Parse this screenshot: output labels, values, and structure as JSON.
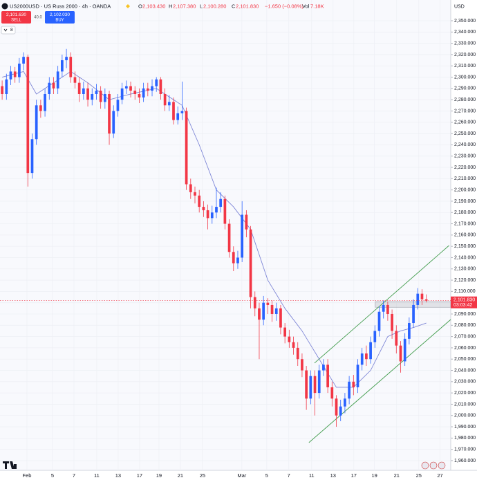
{
  "header": {
    "symbol": "US2000USD · US Russ 2000 · 4h · OANDA",
    "open_label": "O",
    "open": "2,103.430",
    "high_label": "H",
    "high": "2,107.380",
    "low_label": "L",
    "low": "2,100.280",
    "close_label": "C",
    "close": "2,101.830",
    "change": "−1.650 (−0.08%)",
    "volume_label": "Vol",
    "volume": "7.18K"
  },
  "trade": {
    "sell_price": "2,101.630",
    "sell": "SELL",
    "spread": "40.0",
    "buy_price": "2,102.030",
    "buy": "BUY"
  },
  "indicators_count": "8",
  "chart_data": {
    "type": "candlestick",
    "currency": "USD",
    "up_color": "#2962ff",
    "down_color": "#f23645",
    "ma_color": "#7e86d6",
    "channel_color": "#3f9b4a",
    "grid": true,
    "xlim": [
      -0.5,
      104.7
    ],
    "ylim": [
      1951.4,
      2368.4
    ],
    "xticks": [
      {
        "value": 5.79,
        "label": "Feb"
      },
      {
        "value": 11.76,
        "label": "5"
      },
      {
        "value": 16.76,
        "label": "7"
      },
      {
        "value": 22.08,
        "label": "11"
      },
      {
        "value": 27.08,
        "label": "13"
      },
      {
        "value": 32.08,
        "label": "17"
      },
      {
        "value": 36.6,
        "label": "19"
      },
      {
        "value": 41.6,
        "label": "21"
      },
      {
        "value": 46.76,
        "label": "25"
      },
      {
        "value": 55.95,
        "label": "Mar"
      },
      {
        "value": 61.76,
        "label": "5"
      },
      {
        "value": 66.9,
        "label": "7"
      },
      {
        "value": 72.24,
        "label": "11"
      },
      {
        "value": 77.24,
        "label": "13"
      },
      {
        "value": 82.08,
        "label": "17"
      },
      {
        "value": 86.9,
        "label": "19"
      },
      {
        "value": 92.08,
        "label": "21"
      },
      {
        "value": 97.24,
        "label": "25"
      },
      {
        "value": 102.2,
        "label": "27"
      }
    ],
    "yticks": [
      {
        "value": 1960,
        "label": "1,960.000"
      },
      {
        "value": 1970,
        "label": "1,970.000"
      },
      {
        "value": 1980,
        "label": "1,980.000"
      },
      {
        "value": 1990,
        "label": "1,990.000"
      },
      {
        "value": 2000,
        "label": "2,000.000"
      },
      {
        "value": 2010,
        "label": "2,010.000"
      },
      {
        "value": 2020,
        "label": "2,020.000"
      },
      {
        "value": 2030,
        "label": "2,030.000"
      },
      {
        "value": 2040,
        "label": "2,040.000"
      },
      {
        "value": 2050,
        "label": "2,050.000"
      },
      {
        "value": 2060,
        "label": "2,060.000"
      },
      {
        "value": 2070,
        "label": "2,070.000"
      },
      {
        "value": 2080,
        "label": "2,080.000"
      },
      {
        "value": 2090,
        "label": "2,090.000"
      },
      {
        "value": 2100,
        "label": "2,100.000"
      },
      {
        "value": 2110,
        "label": "2,110.000"
      },
      {
        "value": 2120,
        "label": "2,120.000"
      },
      {
        "value": 2130,
        "label": "2,130.000"
      },
      {
        "value": 2140,
        "label": "2,140.000"
      },
      {
        "value": 2150,
        "label": "2,150.000"
      },
      {
        "value": 2160,
        "label": "2,160.000"
      },
      {
        "value": 2170,
        "label": "2,170.000"
      },
      {
        "value": 2180,
        "label": "2,180.000"
      },
      {
        "value": 2190,
        "label": "2,190.000"
      },
      {
        "value": 2200,
        "label": "2,200.000"
      },
      {
        "value": 2210,
        "label": "2,210.000"
      },
      {
        "value": 2220,
        "label": "2,220.000"
      },
      {
        "value": 2230,
        "label": "2,230.000"
      },
      {
        "value": 2240,
        "label": "2,240.000"
      },
      {
        "value": 2250,
        "label": "2,250.000"
      },
      {
        "value": 2260,
        "label": "2,260.000"
      },
      {
        "value": 2270,
        "label": "2,270.000"
      },
      {
        "value": 2280,
        "label": "2,280.000"
      },
      {
        "value": 2290,
        "label": "2,290.000"
      },
      {
        "value": 2300,
        "label": "2,300.000"
      },
      {
        "value": 2310,
        "label": "2,310.000"
      },
      {
        "value": 2320,
        "label": "2,320.000"
      },
      {
        "value": 2330,
        "label": "2,330.000"
      },
      {
        "value": 2340,
        "label": "2,340.000"
      },
      {
        "value": 2350,
        "label": "2,350.000"
      }
    ],
    "candles": [
      [
        2292,
        2297,
        2280,
        2285
      ],
      [
        2285,
        2303,
        2280,
        2298
      ],
      [
        2298,
        2310,
        2293,
        2305
      ],
      [
        2305,
        2309,
        2295,
        2300
      ],
      [
        2300,
        2317,
        2295,
        2312
      ],
      [
        2312,
        2322,
        2306,
        2318
      ],
      [
        2318,
        2320,
        2203,
        2215
      ],
      [
        2215,
        2250,
        2210,
        2245
      ],
      [
        2245,
        2280,
        2240,
        2275
      ],
      [
        2275,
        2280,
        2264,
        2270
      ],
      [
        2270,
        2290,
        2265,
        2285
      ],
      [
        2285,
        2300,
        2280,
        2295
      ],
      [
        2295,
        2300,
        2285,
        2290
      ],
      [
        2290,
        2310,
        2285,
        2305
      ],
      [
        2305,
        2320,
        2300,
        2315
      ],
      [
        2315,
        2325,
        2308,
        2318
      ],
      [
        2318,
        2322,
        2295,
        2300
      ],
      [
        2300,
        2305,
        2290,
        2295
      ],
      [
        2295,
        2300,
        2278,
        2285
      ],
      [
        2285,
        2296,
        2280,
        2290
      ],
      [
        2290,
        2295,
        2274,
        2280
      ],
      [
        2280,
        2290,
        2275,
        2285
      ],
      [
        2285,
        2294,
        2280,
        2288
      ],
      [
        2288,
        2292,
        2272,
        2278
      ],
      [
        2278,
        2290,
        2272,
        2285
      ],
      [
        2285,
        2288,
        2240,
        2250
      ],
      [
        2250,
        2275,
        2246,
        2270
      ],
      [
        2270,
        2285,
        2265,
        2280
      ],
      [
        2280,
        2295,
        2276,
        2290
      ],
      [
        2290,
        2297,
        2285,
        2292
      ],
      [
        2292,
        2296,
        2282,
        2288
      ],
      [
        2288,
        2292,
        2280,
        2285
      ],
      [
        2285,
        2290,
        2277,
        2282
      ],
      [
        2282,
        2295,
        2278,
        2290
      ],
      [
        2290,
        2295,
        2283,
        2288
      ],
      [
        2288,
        2298,
        2283,
        2292
      ],
      [
        2292,
        2300,
        2287,
        2298
      ],
      [
        2298,
        2300,
        2280,
        2285
      ],
      [
        2285,
        2290,
        2270,
        2275
      ],
      [
        2275,
        2284,
        2270,
        2278
      ],
      [
        2278,
        2282,
        2258,
        2262
      ],
      [
        2262,
        2274,
        2258,
        2268
      ],
      [
        2268,
        2296,
        2262,
        2270
      ],
      [
        2270,
        2273,
        2200,
        2205
      ],
      [
        2205,
        2210,
        2192,
        2198
      ],
      [
        2198,
        2203,
        2188,
        2195
      ],
      [
        2195,
        2200,
        2180,
        2185
      ],
      [
        2185,
        2190,
        2176,
        2182
      ],
      [
        2182,
        2187,
        2165,
        2175
      ],
      [
        2175,
        2186,
        2170,
        2180
      ],
      [
        2180,
        2202,
        2175,
        2185
      ],
      [
        2185,
        2198,
        2180,
        2192
      ],
      [
        2192,
        2195,
        2165,
        2170
      ],
      [
        2170,
        2174,
        2140,
        2145
      ],
      [
        2145,
        2150,
        2128,
        2135
      ],
      [
        2135,
        2146,
        2130,
        2140
      ],
      [
        2140,
        2190,
        2136,
        2178
      ],
      [
        2178,
        2182,
        2158,
        2165
      ],
      [
        2165,
        2168,
        2095,
        2105
      ],
      [
        2105,
        2110,
        2088,
        2095
      ],
      [
        2095,
        2100,
        2050,
        2085
      ],
      [
        2085,
        2106,
        2080,
        2100
      ],
      [
        2100,
        2104,
        2090,
        2098
      ],
      [
        2098,
        2102,
        2083,
        2090
      ],
      [
        2090,
        2100,
        2084,
        2095
      ],
      [
        2095,
        2098,
        2072,
        2078
      ],
      [
        2078,
        2082,
        2064,
        2070
      ],
      [
        2070,
        2076,
        2060,
        2065
      ],
      [
        2065,
        2070,
        2054,
        2060
      ],
      [
        2060,
        2065,
        2044,
        2050
      ],
      [
        2050,
        2055,
        2034,
        2040
      ],
      [
        2040,
        2044,
        2005,
        2015
      ],
      [
        2015,
        2040,
        2010,
        2035
      ],
      [
        2035,
        2040,
        2000,
        2020
      ],
      [
        2020,
        2045,
        2015,
        2040
      ],
      [
        2040,
        2050,
        2035,
        2045
      ],
      [
        2045,
        2050,
        2020,
        2025
      ],
      [
        2025,
        2030,
        2008,
        2015
      ],
      [
        2015,
        2018,
        1990,
        2000
      ],
      [
        2000,
        2014,
        1995,
        2008
      ],
      [
        2008,
        2020,
        2002,
        2015
      ],
      [
        2015,
        2035,
        2010,
        2030
      ],
      [
        2030,
        2036,
        2018,
        2025
      ],
      [
        2025,
        2050,
        2020,
        2045
      ],
      [
        2045,
        2060,
        2040,
        2055
      ],
      [
        2055,
        2062,
        2044,
        2050
      ],
      [
        2050,
        2070,
        2046,
        2065
      ],
      [
        2065,
        2080,
        2060,
        2075
      ],
      [
        2075,
        2097,
        2070,
        2092
      ],
      [
        2092,
        2102,
        2086,
        2098
      ],
      [
        2098,
        2101,
        2084,
        2090
      ],
      [
        2090,
        2094,
        2068,
        2075
      ],
      [
        2075,
        2080,
        2055,
        2062
      ],
      [
        2062,
        2066,
        2038,
        2048
      ],
      [
        2048,
        2073,
        2044,
        2068
      ],
      [
        2068,
        2087,
        2063,
        2082
      ],
      [
        2082,
        2103,
        2078,
        2098
      ],
      [
        2098,
        2113,
        2094,
        2108
      ],
      [
        2108,
        2112,
        2098,
        2103
      ],
      [
        2103,
        2107.38,
        2100.28,
        2101.83
      ]
    ],
    "ma": {
      "x": [
        0,
        5,
        8,
        12,
        16,
        20,
        25,
        30,
        36,
        42,
        46,
        50,
        54,
        58,
        62,
        66,
        70,
        74,
        78,
        82,
        86,
        90,
        93,
        96,
        99
      ],
      "values": [
        2300,
        2305,
        2285,
        2295,
        2305,
        2295,
        2280,
        2285,
        2290,
        2275,
        2240,
        2200,
        2185,
        2165,
        2120,
        2095,
        2075,
        2050,
        2025,
        2025,
        2040,
        2070,
        2075,
        2078,
        2082
      ]
    },
    "channel": [
      {
        "x": [
          72.9,
          104.3
        ],
        "y": [
          2046.5,
          2150.7
        ]
      },
      {
        "x": [
          71.6,
          104.7
        ],
        "y": [
          1976,
          2085.1
        ]
      }
    ],
    "zone": {
      "x": [
        87.1,
        104.7
      ],
      "y": [
        2096,
        2101
      ]
    },
    "last_price_label": "2,101.830",
    "countdown": "03:03:42"
  }
}
